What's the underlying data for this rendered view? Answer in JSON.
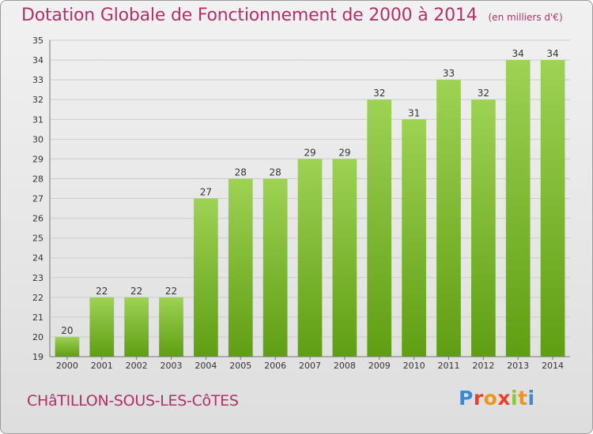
{
  "chart_data": {
    "type": "bar",
    "title": "Dotation Globale de Fonctionnement de 2000 à 2014",
    "unit_label": "(en milliers d'€)",
    "xlabel": "",
    "ylabel": "",
    "categories": [
      "2000",
      "2001",
      "2002",
      "2003",
      "2004",
      "2005",
      "2006",
      "2007",
      "2008",
      "2009",
      "2010",
      "2011",
      "2012",
      "2013",
      "2014"
    ],
    "values": [
      20,
      22,
      22,
      22,
      27,
      28,
      28,
      29,
      29,
      32,
      31,
      33,
      32,
      34,
      34
    ],
    "ylim": [
      19,
      35
    ],
    "yticks": [
      19,
      20,
      21,
      22,
      23,
      24,
      25,
      26,
      27,
      28,
      29,
      30,
      31,
      32,
      33,
      34,
      35
    ],
    "grid": true,
    "colors": {
      "bar_top": "#9ed254",
      "bar_bottom": "#5f9e12",
      "grid": "#cccccc",
      "title": "#b0306b"
    }
  },
  "footer": {
    "town": "CHâTILLON-SOUS-LES-CôTES",
    "brand_letters": [
      "P",
      "r",
      "o",
      "x",
      "i",
      "t",
      "i"
    ]
  }
}
